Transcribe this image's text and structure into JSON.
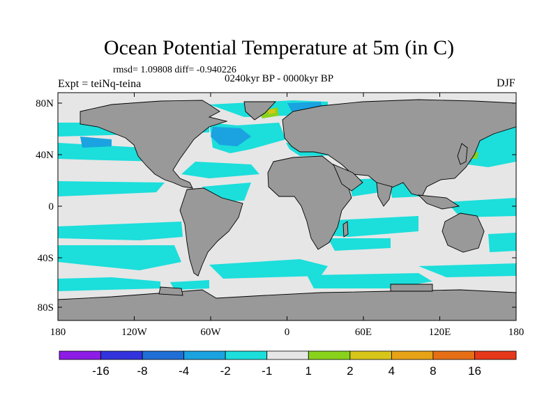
{
  "title": "Ocean Potential Temperature at 5m (in C)",
  "stats": "rmsd= 1.09808 diff= -0.940226",
  "period": "0240kyr BP - 0000kyr BP",
  "experiment": "Expt = teiNq-teina",
  "season": "DJF",
  "map": {
    "land_color": "#999999",
    "x_ticks": [
      "180",
      "120W",
      "60W",
      "0",
      "60E",
      "120E",
      "180"
    ],
    "y_ticks": [
      "80N",
      "40N",
      "0",
      "40S",
      "80S"
    ]
  },
  "colorbar": {
    "colors": [
      "#8c1ce6",
      "#3333dd",
      "#1f6fd6",
      "#1aa3e0",
      "#1cdedb",
      "#e6e6e6",
      "#88d21c",
      "#d7c51a",
      "#e6a317",
      "#e66f15",
      "#e6381a"
    ],
    "labels": [
      "-16",
      "-8",
      "-4",
      "-2",
      "-1",
      "1",
      "2",
      "4",
      "8",
      "16"
    ]
  }
}
